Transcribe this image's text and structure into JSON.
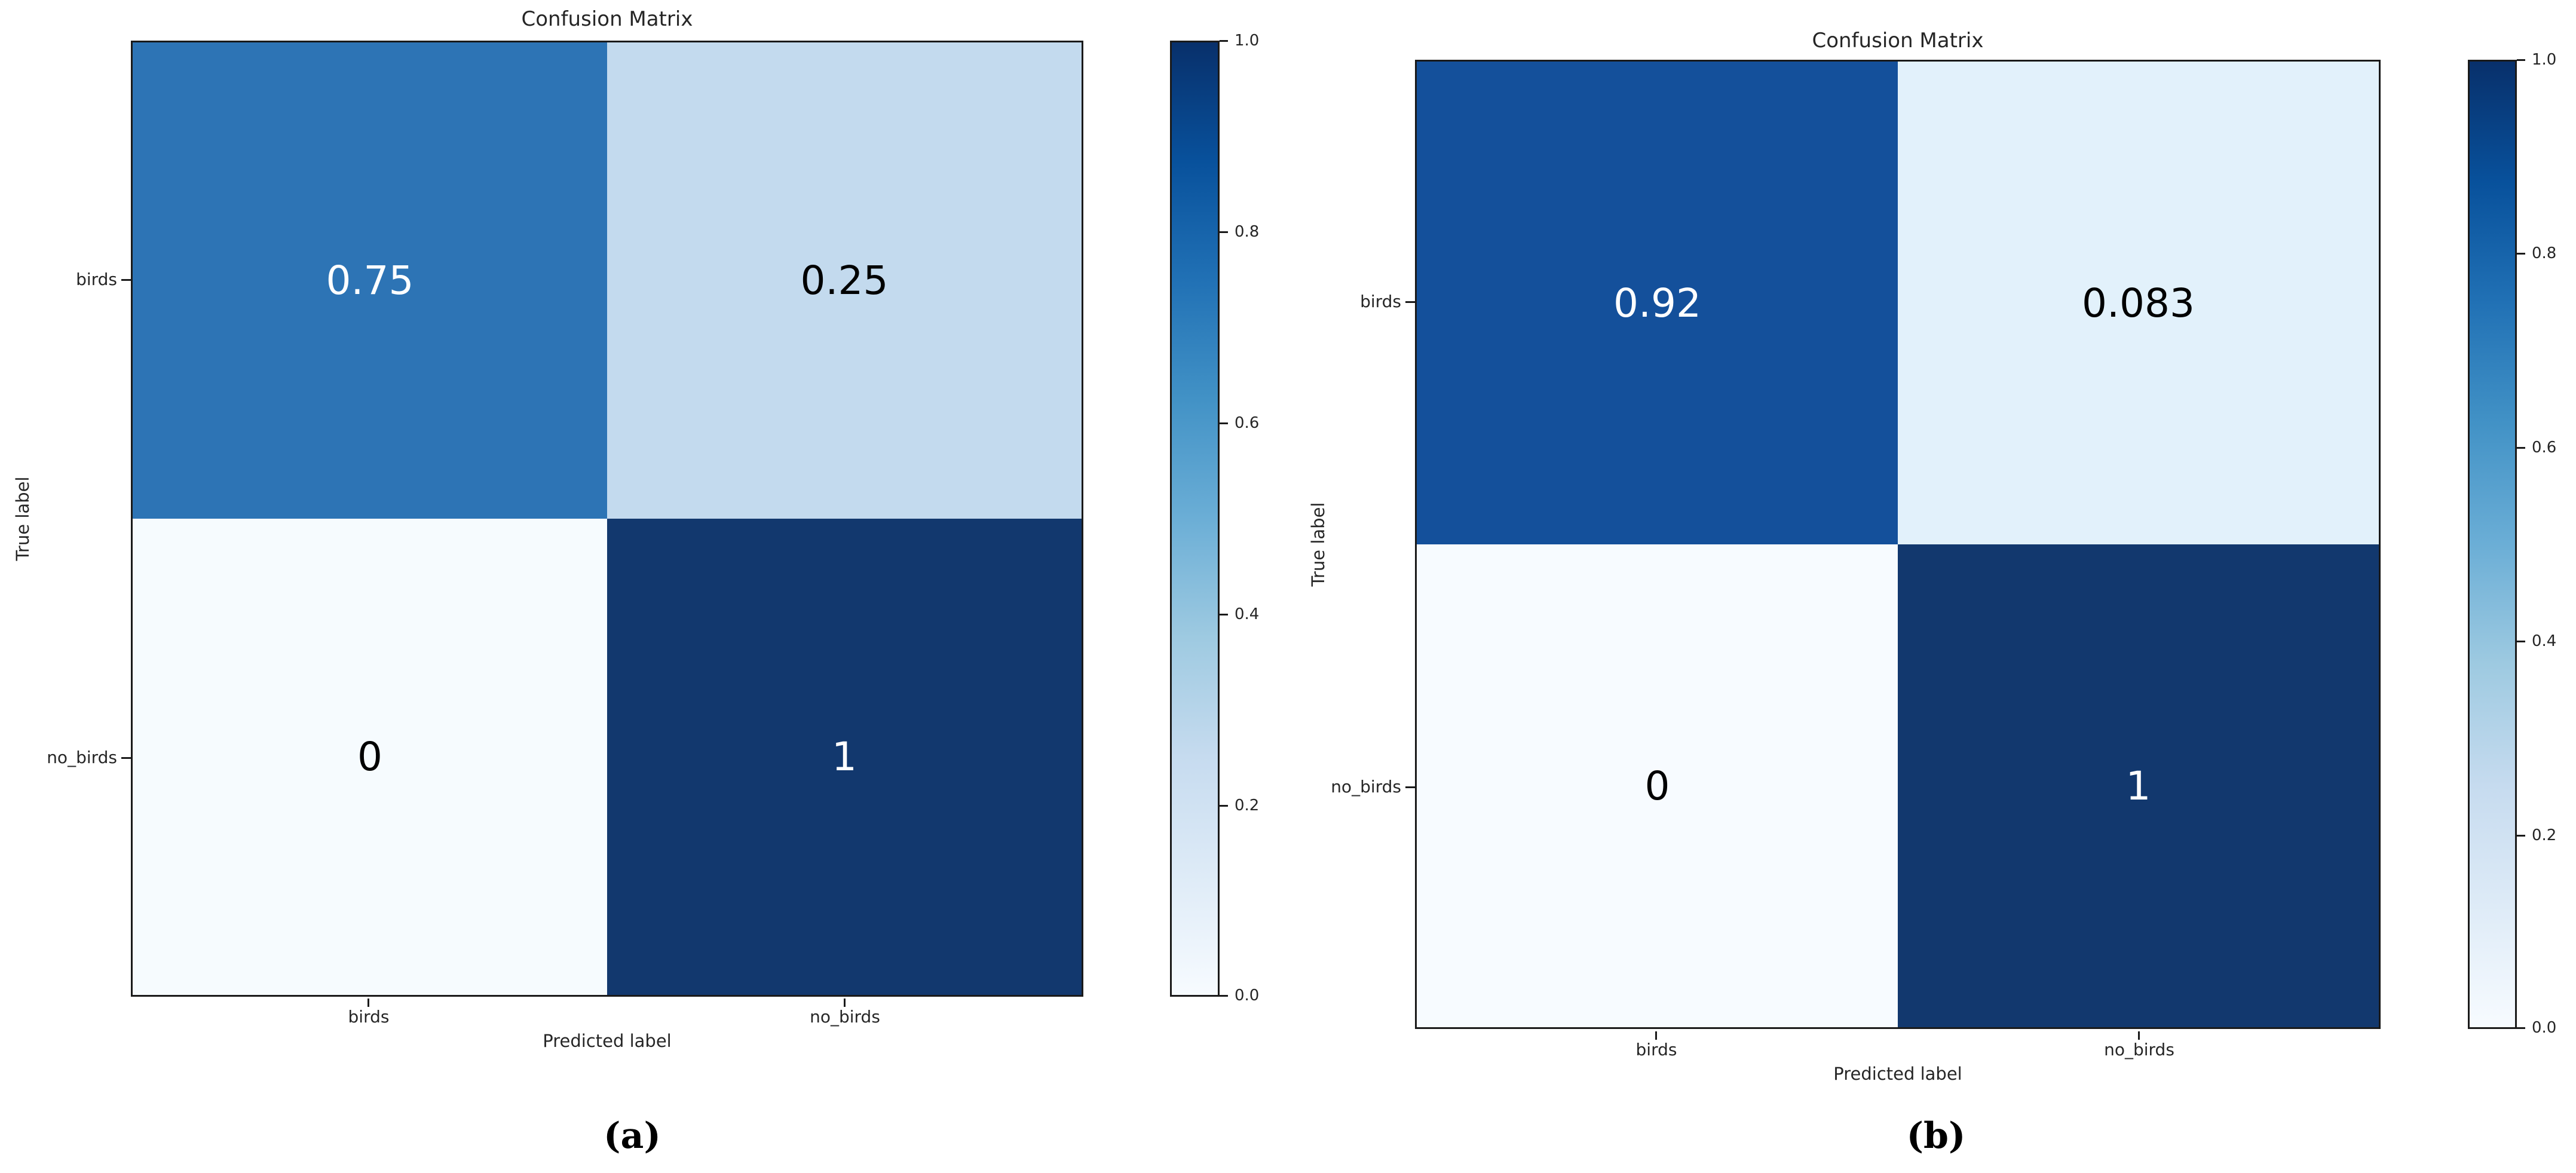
{
  "chart_data": [
    {
      "type": "heatmap",
      "panel_label": "(a)",
      "title": "Confusion Matrix",
      "xlabel": "Predicted label",
      "ylabel": "True label",
      "x_categories": [
        "birds",
        "no_birds"
      ],
      "y_categories": [
        "birds",
        "no_birds"
      ],
      "values": [
        [
          0.75,
          0.25
        ],
        [
          0,
          1
        ]
      ],
      "cell_labels": [
        "0.75",
        "0.25",
        "0",
        "1"
      ],
      "cell_colors": [
        "#2d74b5",
        "#c3daee",
        "#f6fbfe",
        "#12386e"
      ],
      "cell_text_colors": [
        "#ffffff",
        "#000000",
        "#000000",
        "#ffffff"
      ],
      "cell_styles": [
        "background:#2d74b5;color:#ffffff",
        "background:#c3daee;color:#000000",
        "background:#f6fbfe;color:#000000",
        "background:#12386e;color:#ffffff"
      ],
      "colormap": "Blues",
      "vmin": 0,
      "vmax": 1,
      "legend_position": "right-colorbar",
      "colorbar_ticks": [
        1.0,
        0.8,
        0.6,
        0.4,
        0.2,
        0.0
      ],
      "colorbar_tick_labels": [
        "1.0",
        "0.8",
        "0.6",
        "0.4",
        "0.2",
        "0.0"
      ]
    },
    {
      "type": "heatmap",
      "panel_label": "(b)",
      "title": "Confusion Matrix",
      "xlabel": "Predicted label",
      "ylabel": "True label",
      "x_categories": [
        "birds",
        "no_birds"
      ],
      "y_categories": [
        "birds",
        "no_birds"
      ],
      "values": [
        [
          0.92,
          0.083
        ],
        [
          0,
          1
        ]
      ],
      "cell_labels": [
        "0.92",
        "0.083",
        "0",
        "1"
      ],
      "cell_colors": [
        "#14509b",
        "#e2f1fb",
        "#f7fbff",
        "#12386e"
      ],
      "cell_text_colors": [
        "#ffffff",
        "#000000",
        "#000000",
        "#ffffff"
      ],
      "cell_styles": [
        "background:#14509b;color:#ffffff",
        "background:#e2f1fb;color:#000000",
        "background:#f7fbff;color:#000000",
        "background:#12386e;color:#ffffff"
      ],
      "colormap": "Blues",
      "vmin": 0,
      "vmax": 1,
      "legend_position": "right-colorbar",
      "colorbar_ticks": [
        1.0,
        0.8,
        0.6,
        0.4,
        0.2,
        0.0
      ],
      "colorbar_tick_labels": [
        "1.0",
        "0.8",
        "0.6",
        "0.4",
        "0.2",
        "0.0"
      ]
    }
  ]
}
